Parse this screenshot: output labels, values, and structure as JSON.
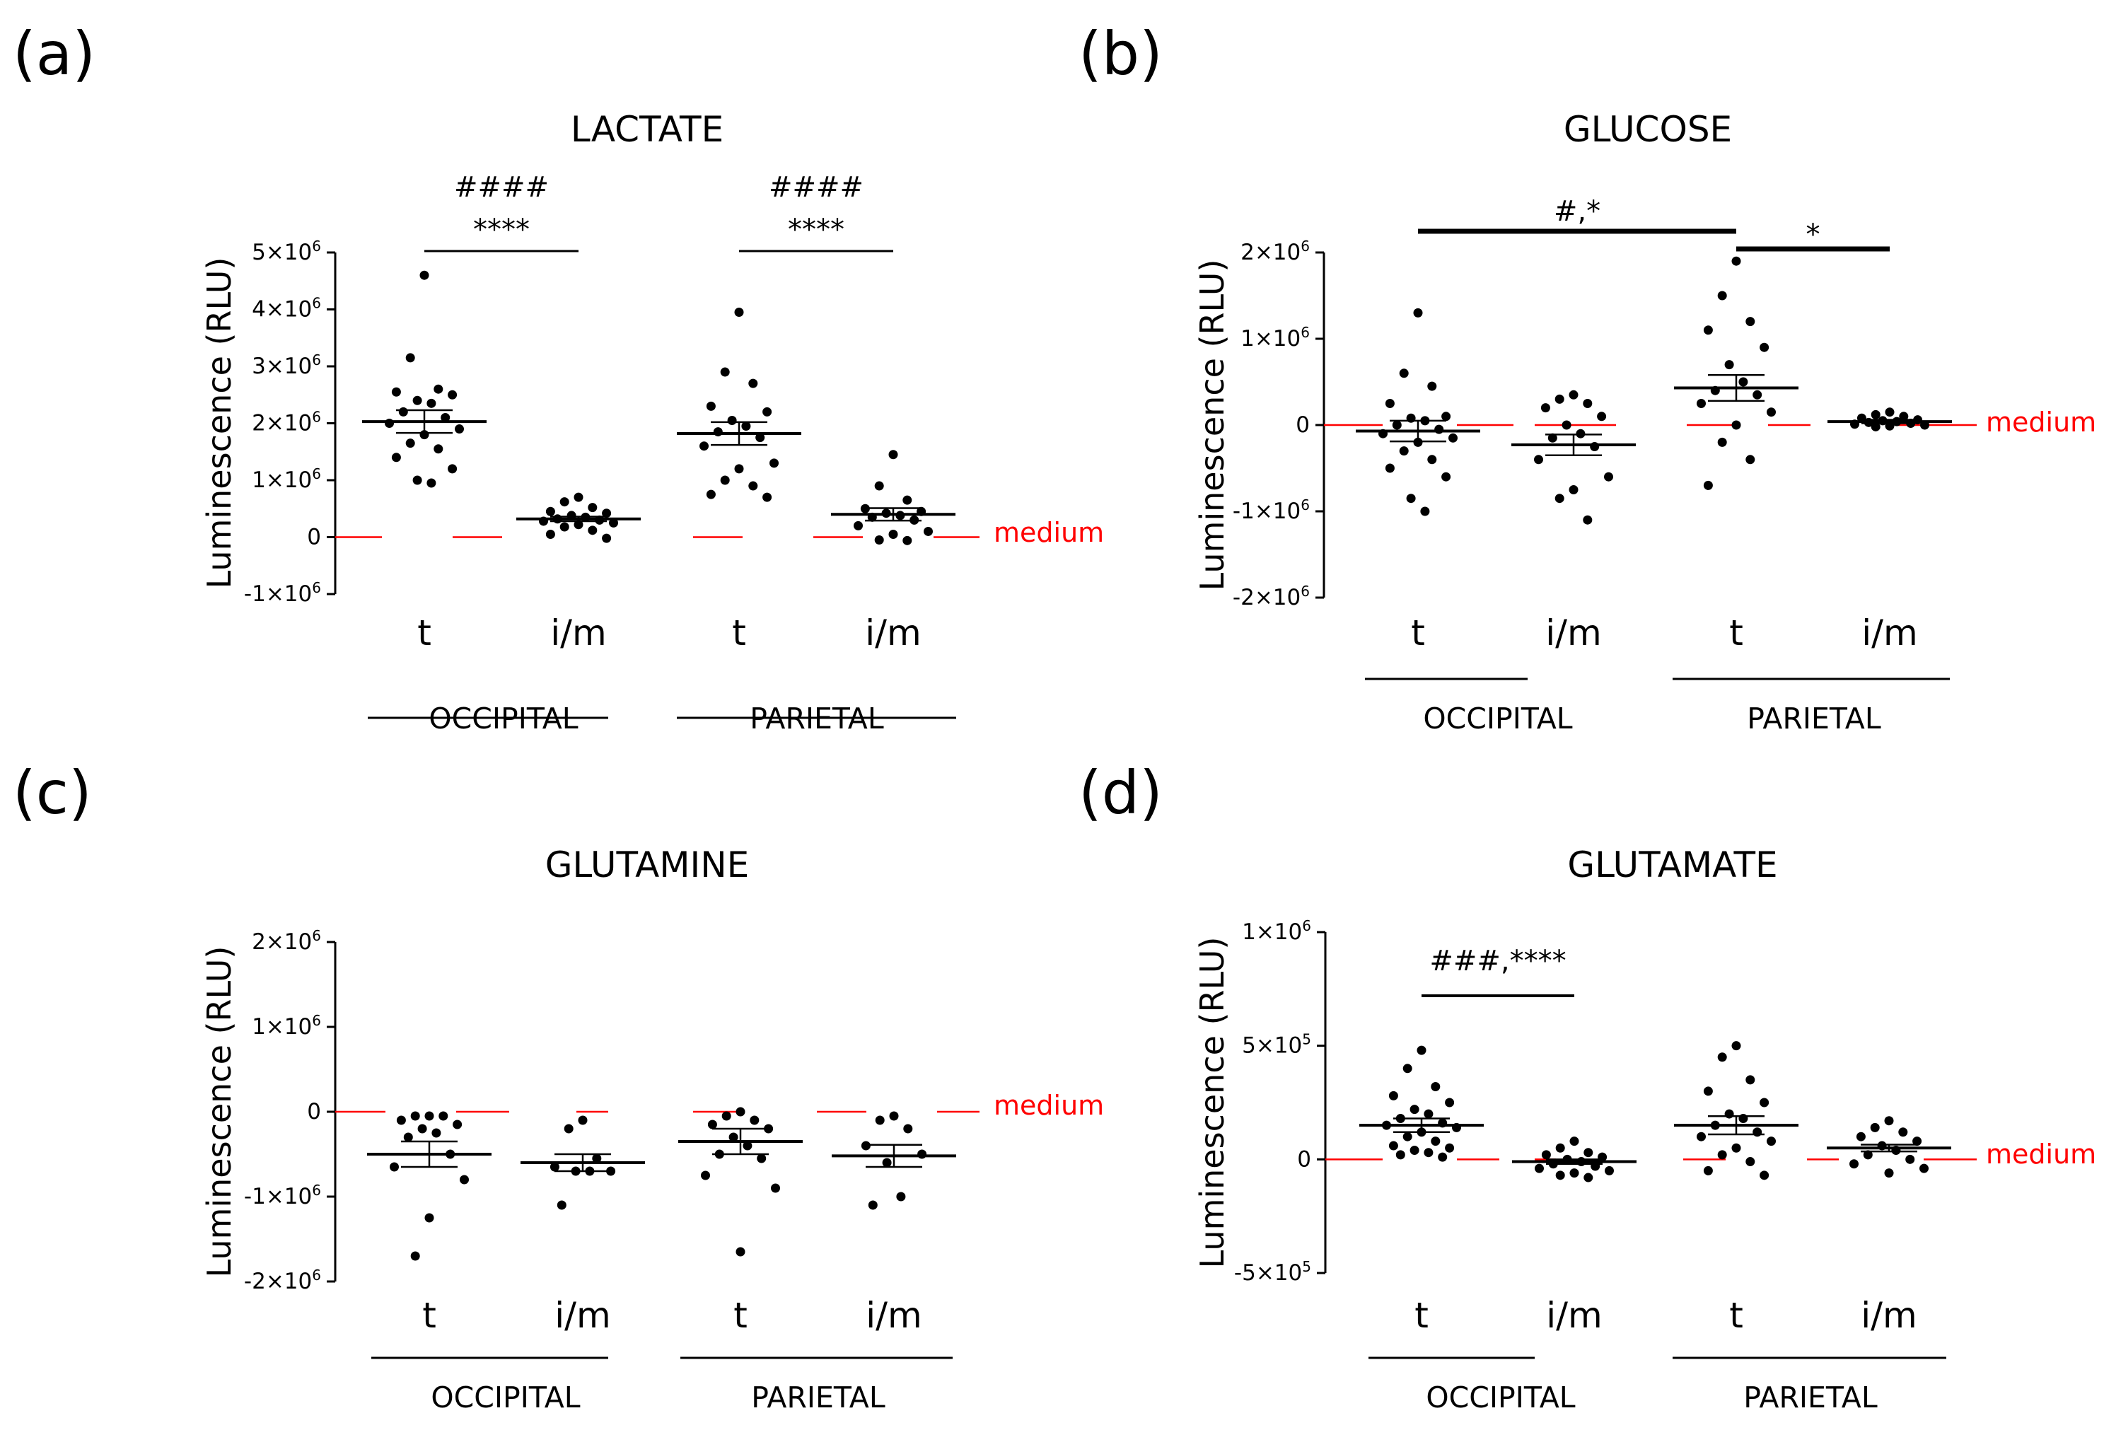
{
  "figure": {
    "medium_label": "medium",
    "medium_color": "#ff0000",
    "point_color": "#000000",
    "y_axis_label": "Luminescence (RLU)"
  },
  "chart_data": [
    {
      "id": "a",
      "panel_label": "(a)",
      "type": "scatter",
      "title": "LACTATE",
      "ylabel": "Luminescence (RLU)",
      "ylim": [
        -1000000,
        5000000
      ],
      "ticks": [
        {
          "value": 5000000,
          "mant": "5×10",
          "exp": "6"
        },
        {
          "value": 4000000,
          "mant": "4×10",
          "exp": "6"
        },
        {
          "value": 3000000,
          "mant": "3×10",
          "exp": "6"
        },
        {
          "value": 2000000,
          "mant": "2×10",
          "exp": "6"
        },
        {
          "value": 1000000,
          "mant": "1×10",
          "exp": "6"
        },
        {
          "value": 0,
          "mant": "0",
          "exp": ""
        },
        {
          "value": -1000000,
          "mant": "-1×10",
          "exp": "6"
        }
      ],
      "categories": [
        "t",
        "i/m",
        "t",
        "i/m"
      ],
      "groups": [
        "OCCIPITAL",
        "PARIETAL"
      ],
      "medium_label": "medium",
      "series": [
        {
          "name": "OCCIPITAL t",
          "mean": 2030000,
          "sem": 200000,
          "values": [
            4600000,
            3150000,
            2600000,
            2550000,
            2500000,
            2400000,
            2350000,
            2200000,
            2100000,
            2000000,
            1900000,
            1800000,
            1650000,
            1550000,
            1400000,
            1200000,
            1000000,
            950000
          ]
        },
        {
          "name": "OCCIPITAL i/m",
          "mean": 320000,
          "sem": 40000,
          "values": [
            700000,
            620000,
            520000,
            450000,
            420000,
            380000,
            350000,
            320000,
            300000,
            280000,
            250000,
            220000,
            180000,
            120000,
            50000,
            -20000
          ]
        },
        {
          "name": "PARIETAL t",
          "mean": 1820000,
          "sem": 200000,
          "values": [
            3950000,
            2900000,
            2700000,
            2300000,
            2200000,
            2050000,
            1950000,
            1850000,
            1750000,
            1600000,
            1300000,
            1200000,
            1000000,
            900000,
            750000,
            700000
          ]
        },
        {
          "name": "PARIETAL i/m",
          "mean": 400000,
          "sem": 110000,
          "values": [
            1450000,
            900000,
            650000,
            500000,
            450000,
            420000,
            380000,
            350000,
            300000,
            200000,
            100000,
            50000,
            -50000,
            -60000
          ]
        }
      ],
      "annotations": [
        {
          "text": "####",
          "size": "small"
        },
        {
          "text": "****",
          "size": "large"
        },
        {
          "text": "####",
          "size": "small"
        },
        {
          "text": "****",
          "size": "large"
        }
      ]
    },
    {
      "id": "b",
      "panel_label": "(b)",
      "type": "scatter",
      "title": "GLUCOSE",
      "ylabel": "Luminescence (RLU)",
      "ylim": [
        -2000000,
        2000000
      ],
      "ticks": [
        {
          "value": 2000000,
          "mant": "2×10",
          "exp": "6"
        },
        {
          "value": 1000000,
          "mant": "1×10",
          "exp": "6"
        },
        {
          "value": 0,
          "mant": "0",
          "exp": ""
        },
        {
          "value": -1000000,
          "mant": "-1×10",
          "exp": "6"
        },
        {
          "value": -2000000,
          "mant": "-2×10",
          "exp": "6"
        }
      ],
      "categories": [
        "t",
        "i/m",
        "t",
        "i/m"
      ],
      "groups": [
        "OCCIPITAL",
        "PARIETAL"
      ],
      "medium_label": "medium",
      "series": [
        {
          "name": "OCCIPITAL t",
          "mean": -70000,
          "sem": 120000,
          "values": [
            1300000,
            600000,
            450000,
            250000,
            100000,
            80000,
            50000,
            0,
            -50000,
            -100000,
            -150000,
            -200000,
            -300000,
            -400000,
            -500000,
            -600000,
            -850000,
            -1000000
          ]
        },
        {
          "name": "OCCIPITAL i/m",
          "mean": -230000,
          "sem": 120000,
          "values": [
            350000,
            300000,
            250000,
            200000,
            100000,
            0,
            -100000,
            -150000,
            -250000,
            -400000,
            -600000,
            -750000,
            -850000,
            -1100000
          ]
        },
        {
          "name": "PARIETAL t",
          "mean": 430000,
          "sem": 150000,
          "values": [
            1900000,
            1500000,
            1200000,
            1100000,
            900000,
            700000,
            500000,
            400000,
            350000,
            250000,
            150000,
            0,
            -200000,
            -400000,
            -700000
          ]
        },
        {
          "name": "PARIETAL i/m",
          "mean": 40000,
          "sem": 20000,
          "values": [
            150000,
            120000,
            100000,
            80000,
            60000,
            50000,
            40000,
            30000,
            20000,
            10000,
            0,
            -10000,
            -20000
          ]
        }
      ],
      "annotations": [
        {
          "text": "#,*",
          "size": "large"
        },
        {
          "text": "*",
          "size": "large"
        }
      ]
    },
    {
      "id": "c",
      "panel_label": "(c)",
      "type": "scatter",
      "title": "GLUTAMINE",
      "ylabel": "Luminescence (RLU)",
      "ylim": [
        -2000000,
        2000000
      ],
      "ticks": [
        {
          "value": 2000000,
          "mant": "2×10",
          "exp": "6"
        },
        {
          "value": 1000000,
          "mant": "1×10",
          "exp": "6"
        },
        {
          "value": 0,
          "mant": "0",
          "exp": ""
        },
        {
          "value": -1000000,
          "mant": "-1×10",
          "exp": "6"
        },
        {
          "value": -2000000,
          "mant": "-2×10",
          "exp": "6"
        }
      ],
      "categories": [
        "t",
        "i/m",
        "t",
        "i/m"
      ],
      "groups": [
        "OCCIPITAL",
        "PARIETAL"
      ],
      "medium_label": "medium",
      "series": [
        {
          "name": "OCCIPITAL t",
          "mean": -500000,
          "sem": 150000,
          "values": [
            -50000,
            -50000,
            -50000,
            -100000,
            -150000,
            -200000,
            -250000,
            -300000,
            -500000,
            -650000,
            -800000,
            -1250000,
            -1700000
          ]
        },
        {
          "name": "OCCIPITAL i/m",
          "mean": -600000,
          "sem": 100000,
          "values": [
            -100000,
            -200000,
            -550000,
            -650000,
            -700000,
            -700000,
            -700000,
            -1100000
          ]
        },
        {
          "name": "PARIETAL t",
          "mean": -350000,
          "sem": 150000,
          "values": [
            0,
            -50000,
            -100000,
            -150000,
            -200000,
            -300000,
            -400000,
            -500000,
            -550000,
            -750000,
            -900000,
            -1650000
          ]
        },
        {
          "name": "PARIETAL i/m",
          "mean": -520000,
          "sem": 130000,
          "values": [
            -50000,
            -100000,
            -200000,
            -400000,
            -500000,
            -600000,
            -1000000,
            -1100000
          ]
        }
      ],
      "annotations": []
    },
    {
      "id": "d",
      "panel_label": "(d)",
      "type": "scatter",
      "title": "GLUTAMATE",
      "ylabel": "Luminescence (RLU)",
      "ylim": [
        -500000,
        1000000
      ],
      "ticks": [
        {
          "value": 1000000,
          "mant": "1×10",
          "exp": "6"
        },
        {
          "value": 500000,
          "mant": "5×10",
          "exp": "5"
        },
        {
          "value": 0,
          "mant": "0",
          "exp": ""
        },
        {
          "value": -500000,
          "mant": "-5×10",
          "exp": "5"
        }
      ],
      "categories": [
        "t",
        "i/m",
        "t",
        "i/m"
      ],
      "groups": [
        "OCCIPITAL",
        "PARIETAL"
      ],
      "medium_label": "medium",
      "series": [
        {
          "name": "OCCIPITAL t",
          "mean": 150000,
          "sem": 30000,
          "values": [
            480000,
            400000,
            320000,
            280000,
            250000,
            220000,
            200000,
            180000,
            160000,
            150000,
            140000,
            120000,
            100000,
            80000,
            60000,
            50000,
            40000,
            30000,
            20000,
            10000
          ]
        },
        {
          "name": "OCCIPITAL i/m",
          "mean": -10000,
          "sem": 10000,
          "values": [
            80000,
            50000,
            30000,
            20000,
            10000,
            0,
            -10000,
            -20000,
            -30000,
            -40000,
            -50000,
            -60000,
            -70000,
            -80000
          ]
        },
        {
          "name": "PARIETAL t",
          "mean": 150000,
          "sem": 40000,
          "values": [
            500000,
            450000,
            350000,
            300000,
            250000,
            200000,
            180000,
            150000,
            120000,
            100000,
            80000,
            50000,
            20000,
            -10000,
            -50000,
            -70000
          ]
        },
        {
          "name": "PARIETAL i/m",
          "mean": 50000,
          "sem": 15000,
          "values": [
            170000,
            140000,
            120000,
            100000,
            80000,
            60000,
            40000,
            20000,
            0,
            -20000,
            -40000,
            -60000
          ]
        }
      ],
      "annotations": [
        {
          "text": "###,****",
          "size": "large"
        }
      ]
    }
  ]
}
